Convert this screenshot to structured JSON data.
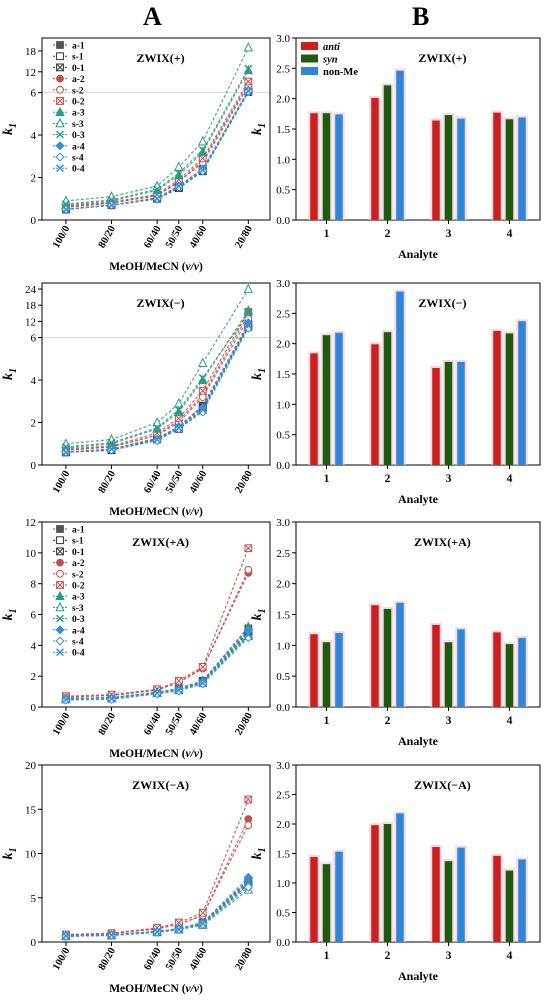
{
  "panels": {
    "left_letter": "A",
    "right_letter": "B"
  },
  "chart_data": [
    {
      "id": "A1",
      "type": "line",
      "title": "ZWIX(+)",
      "xlabel": "MeOH/MeCN (v/v)",
      "ylabel": "k1",
      "categories": [
        "100/0",
        "80/20",
        "60/40",
        "50/50",
        "40/60",
        "20/80"
      ],
      "ylim": [
        0,
        20
      ],
      "yticks_lower": [
        0,
        2,
        4,
        6
      ],
      "yticks_upper": [
        12,
        18
      ],
      "axis_break": 6,
      "series": [
        {
          "name": "a-1",
          "values": [
            0.5,
            0.7,
            1.05,
            1.6,
            2.4,
            6.6
          ]
        },
        {
          "name": "s-1",
          "values": [
            0.5,
            0.7,
            1.0,
            1.55,
            2.3,
            6.2
          ]
        },
        {
          "name": "0-1",
          "values": [
            0.5,
            0.7,
            1.0,
            1.5,
            2.3,
            6.4
          ]
        },
        {
          "name": "a-2",
          "values": [
            0.6,
            0.8,
            1.15,
            1.8,
            2.8,
            8.5
          ]
        },
        {
          "name": "s-2",
          "values": [
            0.6,
            0.8,
            1.15,
            1.8,
            2.7,
            7.9
          ]
        },
        {
          "name": "0-2",
          "values": [
            0.65,
            0.85,
            1.2,
            1.9,
            2.9,
            9.2
          ]
        },
        {
          "name": "a-3",
          "values": [
            0.7,
            0.9,
            1.4,
            2.1,
            3.2,
            12.4
          ]
        },
        {
          "name": "s-3",
          "values": [
            0.9,
            1.1,
            1.6,
            2.5,
            3.7,
            19.0
          ]
        },
        {
          "name": "0-3",
          "values": [
            0.75,
            0.95,
            1.45,
            2.2,
            3.3,
            12.9
          ]
        },
        {
          "name": "a-4",
          "values": [
            0.5,
            0.7,
            1.0,
            1.6,
            2.4,
            6.7
          ]
        },
        {
          "name": "s-4",
          "values": [
            0.5,
            0.7,
            1.0,
            1.55,
            2.3,
            6.3
          ]
        },
        {
          "name": "0-4",
          "values": [
            0.5,
            0.7,
            1.0,
            1.6,
            2.35,
            6.5
          ]
        }
      ]
    },
    {
      "id": "B1",
      "type": "bar",
      "title": "ZWIX(+)",
      "xlabel": "Analyte",
      "ylabel": "k1",
      "categories": [
        "1",
        "2",
        "3",
        "4"
      ],
      "ylim": [
        0,
        3
      ],
      "yticks": [
        "0.0",
        "0.5",
        "1.0",
        "1.5",
        "2.0",
        "2.5",
        "3.0"
      ],
      "series": [
        {
          "name": "anti",
          "values": [
            1.76,
            2.01,
            1.64,
            1.77
          ]
        },
        {
          "name": "syn",
          "values": [
            1.76,
            2.22,
            1.73,
            1.66
          ]
        },
        {
          "name": "non-Me",
          "values": [
            1.74,
            2.46,
            1.67,
            1.69
          ]
        }
      ]
    },
    {
      "id": "A2",
      "type": "line",
      "title": "ZWIX(−)",
      "xlabel": "MeOH/MeCN (v/v)",
      "ylabel": "k1",
      "categories": [
        "100/0",
        "80/20",
        "60/40",
        "50/50",
        "40/60",
        "20/80"
      ],
      "ylim": [
        0,
        24
      ],
      "yticks_lower": [
        0,
        2,
        4,
        6
      ],
      "yticks_upper": [
        12,
        18,
        24
      ],
      "axis_break": 6,
      "series": [
        {
          "name": "a-1",
          "values": [
            0.6,
            0.7,
            1.2,
            1.8,
            2.8,
            11.0
          ]
        },
        {
          "name": "s-1",
          "values": [
            0.6,
            0.7,
            1.2,
            1.7,
            2.6,
            10.0
          ]
        },
        {
          "name": "0-1",
          "values": [
            0.6,
            0.75,
            1.25,
            1.8,
            2.7,
            10.5
          ]
        },
        {
          "name": "a-2",
          "values": [
            0.7,
            0.85,
            1.4,
            2.1,
            3.3,
            14.5
          ]
        },
        {
          "name": "s-2",
          "values": [
            0.7,
            0.85,
            1.4,
            2.0,
            3.2,
            13.0
          ]
        },
        {
          "name": "0-2",
          "values": [
            0.75,
            0.9,
            1.5,
            2.2,
            3.5,
            15.5
          ]
        },
        {
          "name": "a-3",
          "values": [
            0.8,
            1.0,
            1.7,
            2.5,
            4.0,
            16.0
          ]
        },
        {
          "name": "s-3",
          "values": [
            1.0,
            1.2,
            2.0,
            2.9,
            4.8,
            24.0
          ]
        },
        {
          "name": "0-3",
          "values": [
            0.85,
            1.05,
            1.75,
            2.6,
            4.1,
            15.0
          ]
        },
        {
          "name": "a-4",
          "values": [
            0.6,
            0.75,
            1.2,
            1.8,
            2.7,
            11.5
          ]
        },
        {
          "name": "s-4",
          "values": [
            0.6,
            0.7,
            1.15,
            1.7,
            2.5,
            9.5
          ]
        },
        {
          "name": "0-4",
          "values": [
            0.6,
            0.75,
            1.2,
            1.75,
            2.6,
            10.5
          ]
        }
      ]
    },
    {
      "id": "B2",
      "type": "bar",
      "title": "ZWIX(−)",
      "xlabel": "Analyte",
      "ylabel": "k1",
      "categories": [
        "1",
        "2",
        "3",
        "4"
      ],
      "ylim": [
        0,
        3
      ],
      "yticks": [
        "0.0",
        "0.5",
        "1.0",
        "1.5",
        "2.0",
        "2.5",
        "3.0"
      ],
      "series": [
        {
          "name": "anti",
          "values": [
            1.84,
            1.99,
            1.6,
            2.21
          ]
        },
        {
          "name": "syn",
          "values": [
            2.14,
            2.19,
            1.7,
            2.17
          ]
        },
        {
          "name": "non-Me",
          "values": [
            2.18,
            2.86,
            1.7,
            2.37
          ]
        }
      ]
    },
    {
      "id": "A3",
      "type": "line",
      "title": "ZWIX(+A)",
      "xlabel": "MeOH/MeCN (v/v)",
      "ylabel": "k1",
      "categories": [
        "100/0",
        "80/20",
        "60/40",
        "50/50",
        "40/60",
        "20/80"
      ],
      "ylim": [
        0,
        12
      ],
      "yticks": [
        0,
        2,
        4,
        6,
        8,
        10,
        12
      ],
      "series": [
        {
          "name": "a-1",
          "values": [
            0.55,
            0.6,
            0.95,
            1.2,
            1.7,
            5.1
          ]
        },
        {
          "name": "s-1",
          "values": [
            0.5,
            0.55,
            0.9,
            1.1,
            1.6,
            4.7
          ]
        },
        {
          "name": "0-1",
          "values": [
            0.55,
            0.6,
            0.95,
            1.15,
            1.65,
            4.9
          ]
        },
        {
          "name": "a-2",
          "values": [
            0.65,
            0.75,
            1.1,
            1.6,
            2.5,
            8.7
          ]
        },
        {
          "name": "s-2",
          "values": [
            0.65,
            0.75,
            1.1,
            1.6,
            2.5,
            8.9
          ]
        },
        {
          "name": "0-2",
          "values": [
            0.7,
            0.8,
            1.15,
            1.7,
            2.6,
            10.3
          ]
        },
        {
          "name": "a-3",
          "values": [
            0.55,
            0.6,
            0.95,
            1.2,
            1.7,
            5.2
          ]
        },
        {
          "name": "s-3",
          "values": [
            0.5,
            0.55,
            0.9,
            1.1,
            1.55,
            4.6
          ]
        },
        {
          "name": "0-3",
          "values": [
            0.55,
            0.6,
            0.95,
            1.15,
            1.6,
            4.8
          ]
        },
        {
          "name": "a-4",
          "values": [
            0.5,
            0.55,
            0.9,
            1.15,
            1.6,
            5.0
          ]
        },
        {
          "name": "s-4",
          "values": [
            0.45,
            0.5,
            0.85,
            1.05,
            1.5,
            4.5
          ]
        },
        {
          "name": "0-4",
          "values": [
            0.5,
            0.55,
            0.9,
            1.1,
            1.55,
            4.7
          ]
        }
      ]
    },
    {
      "id": "B3",
      "type": "bar",
      "title": "ZWIX(+A)",
      "xlabel": "Analyte",
      "ylabel": "k1",
      "categories": [
        "1",
        "2",
        "3",
        "4"
      ],
      "ylim": [
        0,
        3
      ],
      "yticks": [
        "0.0",
        "0.5",
        "1.0",
        "1.5",
        "2.0",
        "2.5",
        "3.0"
      ],
      "series": [
        {
          "name": "anti",
          "values": [
            1.18,
            1.65,
            1.33,
            1.21
          ]
        },
        {
          "name": "syn",
          "values": [
            1.05,
            1.59,
            1.05,
            1.02
          ]
        },
        {
          "name": "non-Me",
          "values": [
            1.2,
            1.69,
            1.26,
            1.12
          ]
        }
      ]
    },
    {
      "id": "A4",
      "type": "line",
      "title": "ZWIX(−A)",
      "xlabel": "MeOH/MeCN (v/v)",
      "ylabel": "k1",
      "categories": [
        "100/0",
        "80/20",
        "60/40",
        "50/50",
        "40/60",
        "20/80"
      ],
      "ylim": [
        0,
        20
      ],
      "yticks": [
        0,
        5,
        10,
        15,
        20
      ],
      "series": [
        {
          "name": "a-1",
          "values": [
            0.7,
            0.8,
            1.2,
            1.5,
            2.2,
            7.0
          ]
        },
        {
          "name": "s-1",
          "values": [
            0.65,
            0.75,
            1.1,
            1.4,
            2.0,
            6.5
          ]
        },
        {
          "name": "0-1",
          "values": [
            0.7,
            0.8,
            1.15,
            1.45,
            2.1,
            6.8
          ]
        },
        {
          "name": "a-2",
          "values": [
            0.8,
            0.95,
            1.5,
            2.0,
            3.0,
            13.9
          ]
        },
        {
          "name": "s-2",
          "values": [
            0.8,
            0.95,
            1.5,
            2.0,
            3.0,
            13.2
          ]
        },
        {
          "name": "0-2",
          "values": [
            0.85,
            1.0,
            1.6,
            2.2,
            3.3,
            16.1
          ]
        },
        {
          "name": "a-3",
          "values": [
            0.7,
            0.8,
            1.2,
            1.5,
            2.1,
            6.9
          ]
        },
        {
          "name": "s-3",
          "values": [
            0.65,
            0.75,
            1.1,
            1.4,
            1.9,
            5.9
          ]
        },
        {
          "name": "0-3",
          "values": [
            0.7,
            0.8,
            1.15,
            1.45,
            2.0,
            6.6
          ]
        },
        {
          "name": "a-4",
          "values": [
            0.7,
            0.8,
            1.2,
            1.5,
            2.2,
            7.3
          ]
        },
        {
          "name": "s-4",
          "values": [
            0.65,
            0.75,
            1.1,
            1.4,
            2.0,
            6.2
          ]
        },
        {
          "name": "0-4",
          "values": [
            0.7,
            0.8,
            1.15,
            1.45,
            2.1,
            6.7
          ]
        }
      ]
    },
    {
      "id": "B4",
      "type": "bar",
      "title": "ZWIX(−A)",
      "xlabel": "Analyte",
      "ylabel": "k1",
      "categories": [
        "1",
        "2",
        "3",
        "4"
      ],
      "ylim": [
        0,
        3
      ],
      "yticks": [
        "0.0",
        "0.5",
        "1.0",
        "1.5",
        "2.0",
        "2.5",
        "3.0"
      ],
      "series": [
        {
          "name": "anti",
          "values": [
            1.44,
            1.98,
            1.61,
            1.46
          ]
        },
        {
          "name": "syn",
          "values": [
            1.32,
            2.0,
            1.37,
            1.21
          ]
        },
        {
          "name": "non-Me",
          "values": [
            1.53,
            2.18,
            1.6,
            1.4
          ]
        }
      ]
    }
  ],
  "styles": {
    "line_series": {
      "a-1": {
        "color": "#555555",
        "marker": "square-filled"
      },
      "s-1": {
        "color": "#333333",
        "marker": "square-open"
      },
      "0-1": {
        "color": "#333333",
        "marker": "square-x"
      },
      "a-2": {
        "color": "#c0504d",
        "marker": "circle-filled"
      },
      "s-2": {
        "color": "#c0504d",
        "marker": "circle-open"
      },
      "0-2": {
        "color": "#c0504d",
        "marker": "square-x"
      },
      "a-3": {
        "color": "#2e9b8a",
        "marker": "triangle-filled"
      },
      "s-3": {
        "color": "#2e9b8a",
        "marker": "triangle-open"
      },
      "0-3": {
        "color": "#2e9b8a",
        "marker": "x"
      },
      "a-4": {
        "color": "#3b8fd6",
        "marker": "diamond-filled"
      },
      "s-4": {
        "color": "#3b8fd6",
        "marker": "diamond-open"
      },
      "0-4": {
        "color": "#3b8fd6",
        "marker": "x"
      }
    },
    "bar_colors": {
      "anti": "#cc1f1f",
      "syn": "#1e5a10",
      "non-Me": "#2f86d8"
    },
    "bar_shadow": "#f7c7d3"
  }
}
